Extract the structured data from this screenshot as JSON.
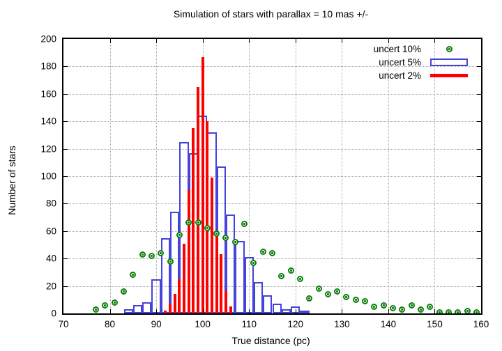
{
  "title": "Simulation of stars with parallax = 10 mas +/-",
  "axes": {
    "x_label": "True distance (pc)",
    "y_label": "Number of stars"
  },
  "legend": {
    "items": [
      {
        "label": "uncert 10%",
        "marker": "point",
        "color": "#0b7d0b"
      },
      {
        "label": "uncert 5%",
        "marker": "box",
        "color": "#4444dd"
      },
      {
        "label": "uncert 2%",
        "marker": "line",
        "color": "#ff0000"
      }
    ]
  },
  "chart_data": {
    "type": "bar",
    "title": "Simulation of stars with parallax = 10 mas +/-",
    "xlabel": "True distance (pc)",
    "ylabel": "Number of stars",
    "x_range": [
      70,
      160
    ],
    "y_range": [
      0,
      200
    ],
    "x_ticks": [
      70,
      80,
      90,
      100,
      110,
      120,
      130,
      140,
      150,
      160
    ],
    "y_ticks": [
      0,
      20,
      40,
      60,
      80,
      100,
      120,
      140,
      160,
      180,
      200
    ],
    "grid": true,
    "colors": {
      "red": "#ff0000",
      "blue": "#4444dd",
      "green": "#0b7d0b",
      "grid": "#a8a8a8",
      "axis": "#000000"
    },
    "series": [
      {
        "name": "uncert 10%",
        "type": "scatter",
        "color": "#0b7d0b",
        "x": [
          77,
          79,
          81,
          83,
          85,
          87,
          89,
          91,
          93,
          95,
          97,
          99,
          101,
          103,
          105,
          107,
          109,
          111,
          113,
          115,
          117,
          119,
          121,
          123,
          125,
          127,
          129,
          131,
          133,
          135,
          137,
          139,
          141,
          143,
          145,
          147,
          149,
          151,
          153,
          155,
          157,
          159,
          161
        ],
        "y": [
          3,
          6,
          8,
          16,
          28,
          43,
          42,
          44,
          38,
          57,
          66,
          66,
          62,
          58,
          55,
          52,
          65,
          37,
          45,
          44,
          27,
          31,
          25,
          11,
          18,
          14,
          16,
          12,
          10,
          9,
          5,
          6,
          4,
          3,
          6,
          3,
          5,
          1,
          1,
          1,
          2,
          1,
          1
        ]
      },
      {
        "name": "uncert 5%",
        "type": "histogram",
        "color": "#4444dd",
        "bin_start": 83,
        "bin_width": 2,
        "values": [
          3,
          6,
          8,
          25,
          55,
          74,
          125,
          117,
          144,
          132,
          107,
          72,
          53,
          41,
          23,
          13,
          7,
          3,
          5,
          2
        ]
      },
      {
        "name": "uncert 2%",
        "type": "histogram",
        "color": "#ff0000",
        "bar_centers": [
          92,
          93,
          94,
          95,
          96,
          97,
          98,
          99,
          100,
          101,
          102,
          103,
          104,
          105,
          106
        ],
        "values": [
          2,
          7,
          14,
          25,
          51,
          90,
          135,
          165,
          187,
          140,
          99,
          60,
          43,
          16,
          5
        ]
      }
    ]
  }
}
